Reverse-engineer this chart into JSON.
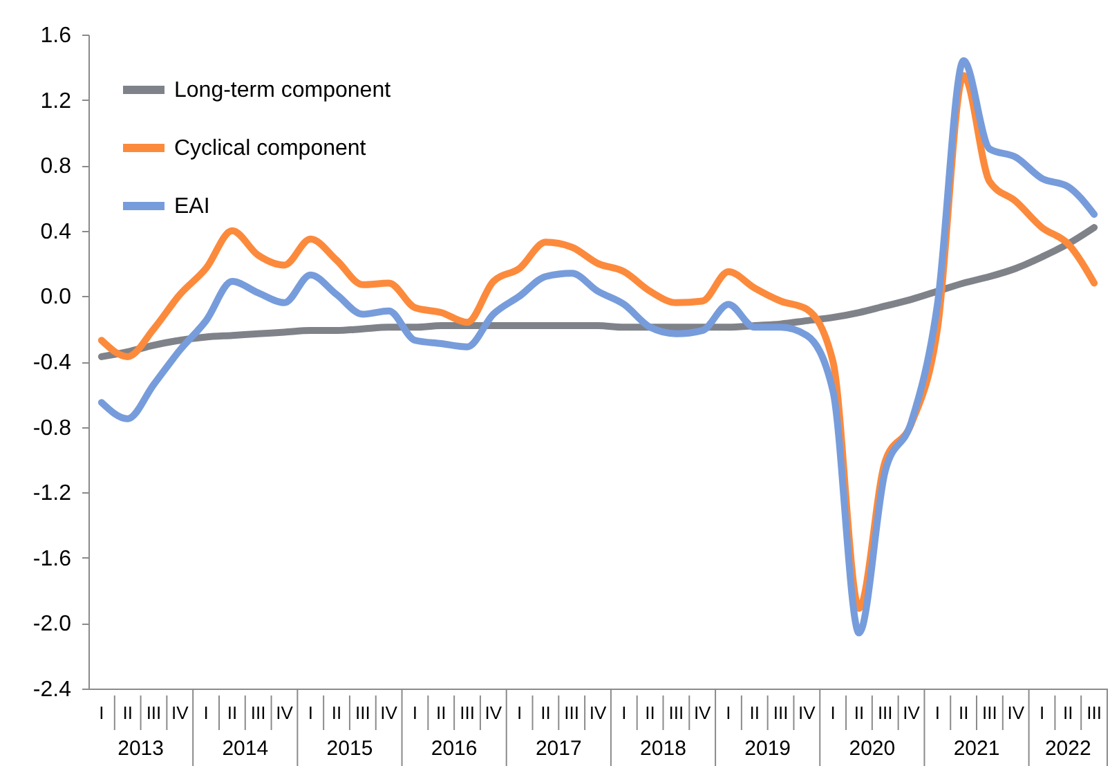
{
  "chart_data": {
    "type": "line",
    "legend": "top left",
    "grid": false,
    "annotations": [
      "2013",
      "2014",
      "2015",
      "2016",
      "2017",
      "2018",
      "2019",
      "2020",
      "2021",
      "2022"
    ],
    "categories": [
      "I",
      "II",
      "III",
      "IV",
      "I",
      "II",
      "III",
      "IV",
      "I",
      "II",
      "III",
      "IV",
      "I",
      "II",
      "III",
      "IV",
      "I",
      "II",
      "III",
      "IV",
      "I",
      "II",
      "III",
      "IV",
      "I",
      "II",
      "III",
      "IV",
      "I",
      "II",
      "III",
      "IV",
      "I",
      "II",
      "III",
      "IV",
      "I",
      "II",
      "III"
    ],
    "ylim": [
      -2.4,
      1.6
    ],
    "yticks": [
      {
        "value": -2.4,
        "label": "-2.4"
      },
      {
        "value": -2.0,
        "label": "-2.0"
      },
      {
        "value": -1.6,
        "label": "-1.6"
      },
      {
        "value": -1.2,
        "label": "-1.2"
      },
      {
        "value": -0.8,
        "label": "-0.8"
      },
      {
        "value": -0.4,
        "label": "-0.4"
      },
      {
        "value": 0,
        "label": "0.0"
      },
      {
        "value": 0.4,
        "label": "0.4"
      },
      {
        "value": 0.8,
        "label": "0.8"
      },
      {
        "value": 1.2,
        "label": "1.2"
      },
      {
        "value": 1.6,
        "label": "1.6"
      }
    ],
    "series": [
      {
        "name": "Long-term component",
        "color": "#7f8289",
        "values": [
          -0.37,
          -0.34,
          -0.3,
          -0.27,
          -0.25,
          -0.24,
          -0.23,
          -0.22,
          -0.21,
          -0.21,
          -0.2,
          -0.19,
          -0.19,
          -0.18,
          -0.18,
          -0.18,
          -0.18,
          -0.18,
          -0.18,
          -0.18,
          -0.19,
          -0.19,
          -0.19,
          -0.19,
          -0.19,
          -0.18,
          -0.17,
          -0.15,
          -0.13,
          -0.1,
          -0.06,
          -0.02,
          0.03,
          0.08,
          0.12,
          0.17,
          0.24,
          0.32,
          0.42
        ]
      },
      {
        "name": "Cyclical component",
        "color": "#fc8a3c",
        "values": [
          -0.27,
          -0.37,
          -0.2,
          0.01,
          0.17,
          0.4,
          0.25,
          0.19,
          0.35,
          0.22,
          0.07,
          0.08,
          -0.07,
          -0.1,
          -0.16,
          0.09,
          0.17,
          0.33,
          0.3,
          0.2,
          0.15,
          0.03,
          -0.04,
          -0.03,
          0.15,
          0.05,
          -0.03,
          -0.08,
          -0.4,
          -1.91,
          -1.01,
          -0.78,
          -0.2,
          1.35,
          0.7,
          0.58,
          0.42,
          0.32,
          0.08
        ]
      },
      {
        "name": "EAI",
        "color": "#779cdb",
        "values": [
          -0.65,
          -0.75,
          -0.54,
          -0.33,
          -0.15,
          0.09,
          0.02,
          -0.04,
          0.13,
          0.01,
          -0.11,
          -0.09,
          -0.27,
          -0.29,
          -0.31,
          -0.11,
          0.0,
          0.12,
          0.14,
          0.03,
          -0.05,
          -0.19,
          -0.23,
          -0.21,
          -0.05,
          -0.19,
          -0.19,
          -0.24,
          -0.58,
          -2.06,
          -1.07,
          -0.77,
          -0.05,
          1.44,
          0.9,
          0.85,
          0.72,
          0.67,
          0.5
        ]
      }
    ]
  }
}
